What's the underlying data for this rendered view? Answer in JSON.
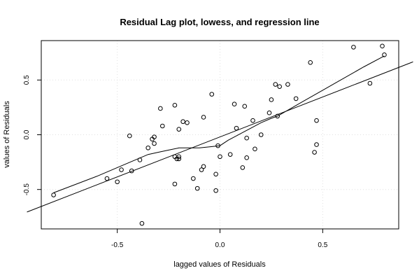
{
  "chart_data": {
    "type": "scatter",
    "title": "Residual Lag plot, lowess, and regression line",
    "xlabel": "lagged values of Residuals",
    "ylabel": "values of Residuals",
    "xlim": [
      -0.87,
      0.87
    ],
    "ylim": [
      -0.86,
      0.86
    ],
    "xticks": [
      -0.5,
      0.0,
      0.5
    ],
    "xtick_labels": [
      "-0.5",
      "0.0",
      "0.5"
    ],
    "yticks": [
      -0.5,
      0.0,
      0.5
    ],
    "ytick_labels": [
      "-0.5",
      "0.0",
      "0.5"
    ],
    "grid": true,
    "points": [
      {
        "x": -0.81,
        "y": -0.55
      },
      {
        "x": -0.55,
        "y": -0.4
      },
      {
        "x": -0.5,
        "y": -0.43
      },
      {
        "x": -0.48,
        "y": -0.32
      },
      {
        "x": -0.44,
        "y": -0.01
      },
      {
        "x": -0.43,
        "y": -0.33
      },
      {
        "x": -0.39,
        "y": -0.23
      },
      {
        "x": -0.38,
        "y": -0.81
      },
      {
        "x": -0.35,
        "y": -0.12
      },
      {
        "x": -0.33,
        "y": -0.04
      },
      {
        "x": -0.32,
        "y": -0.02
      },
      {
        "x": -0.32,
        "y": -0.08
      },
      {
        "x": -0.29,
        "y": 0.24
      },
      {
        "x": -0.28,
        "y": 0.08
      },
      {
        "x": -0.22,
        "y": 0.27
      },
      {
        "x": -0.22,
        "y": -0.45
      },
      {
        "x": -0.22,
        "y": -0.2
      },
      {
        "x": -0.21,
        "y": -0.22
      },
      {
        "x": -0.2,
        "y": -0.22
      },
      {
        "x": -0.2,
        "y": 0.05
      },
      {
        "x": -0.2,
        "y": -0.2
      },
      {
        "x": -0.18,
        "y": 0.12
      },
      {
        "x": -0.16,
        "y": 0.11
      },
      {
        "x": -0.13,
        "y": -0.4
      },
      {
        "x": -0.11,
        "y": -0.49
      },
      {
        "x": -0.09,
        "y": -0.32
      },
      {
        "x": -0.08,
        "y": 0.16
      },
      {
        "x": -0.08,
        "y": -0.29
      },
      {
        "x": -0.04,
        "y": 0.37
      },
      {
        "x": -0.02,
        "y": -0.51
      },
      {
        "x": -0.02,
        "y": -0.36
      },
      {
        "x": -0.01,
        "y": -0.1
      },
      {
        "x": 0.0,
        "y": -0.2
      },
      {
        "x": 0.05,
        "y": -0.18
      },
      {
        "x": 0.07,
        "y": 0.28
      },
      {
        "x": 0.08,
        "y": 0.06
      },
      {
        "x": 0.11,
        "y": -0.3
      },
      {
        "x": 0.12,
        "y": 0.26
      },
      {
        "x": 0.13,
        "y": -0.21
      },
      {
        "x": 0.13,
        "y": -0.03
      },
      {
        "x": 0.16,
        "y": 0.13
      },
      {
        "x": 0.17,
        "y": -0.13
      },
      {
        "x": 0.2,
        "y": 0.0
      },
      {
        "x": 0.24,
        "y": 0.2
      },
      {
        "x": 0.25,
        "y": 0.32
      },
      {
        "x": 0.27,
        "y": 0.46
      },
      {
        "x": 0.28,
        "y": 0.17
      },
      {
        "x": 0.29,
        "y": 0.44
      },
      {
        "x": 0.33,
        "y": 0.46
      },
      {
        "x": 0.37,
        "y": 0.33
      },
      {
        "x": 0.44,
        "y": 0.66
      },
      {
        "x": 0.46,
        "y": -0.16
      },
      {
        "x": 0.47,
        "y": 0.13
      },
      {
        "x": 0.47,
        "y": -0.09
      },
      {
        "x": 0.65,
        "y": 0.8
      },
      {
        "x": 0.73,
        "y": 0.47
      },
      {
        "x": 0.79,
        "y": 0.81
      },
      {
        "x": 0.8,
        "y": 0.73
      }
    ],
    "regression_line": {
      "intercept": -0.02,
      "slope": 0.73
    },
    "lowess_curve": [
      {
        "x": -0.81,
        "y": -0.53
      },
      {
        "x": -0.6,
        "y": -0.38
      },
      {
        "x": -0.45,
        "y": -0.26
      },
      {
        "x": -0.35,
        "y": -0.18
      },
      {
        "x": -0.3,
        "y": -0.16
      },
      {
        "x": -0.25,
        "y": -0.14
      },
      {
        "x": -0.2,
        "y": -0.12
      },
      {
        "x": -0.15,
        "y": -0.12
      },
      {
        "x": -0.1,
        "y": -0.12
      },
      {
        "x": -0.05,
        "y": -0.11
      },
      {
        "x": 0.0,
        "y": -0.1
      },
      {
        "x": 0.04,
        "y": -0.05
      },
      {
        "x": 0.08,
        "y": -0.01
      },
      {
        "x": 0.12,
        "y": 0.03
      },
      {
        "x": 0.16,
        "y": 0.07
      },
      {
        "x": 0.2,
        "y": 0.11
      },
      {
        "x": 0.25,
        "y": 0.15
      },
      {
        "x": 0.28,
        "y": 0.17
      },
      {
        "x": 0.4,
        "y": 0.3
      },
      {
        "x": 0.55,
        "y": 0.46
      },
      {
        "x": 0.7,
        "y": 0.62
      },
      {
        "x": 0.8,
        "y": 0.72
      }
    ]
  }
}
